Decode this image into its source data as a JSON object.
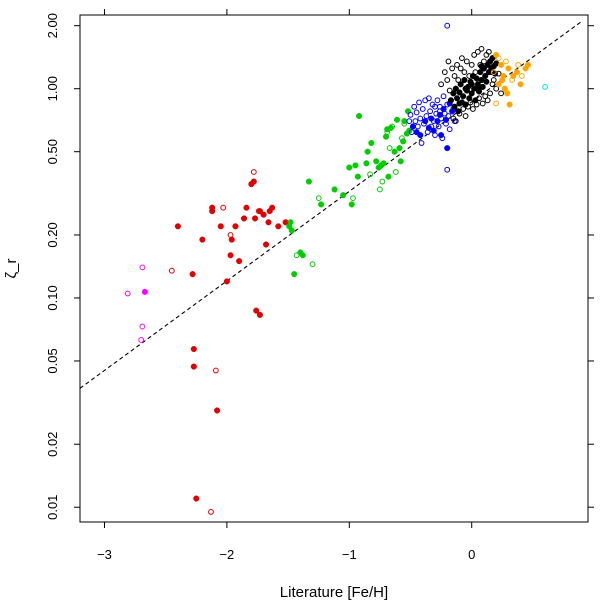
{
  "chart_data": {
    "type": "scatter",
    "title": "",
    "xlabel": "Literature [Fe/H]",
    "ylabel": "ζ_r",
    "xscale": "linear",
    "yscale": "log",
    "xlim": [
      -3.2,
      0.95
    ],
    "ylim": [
      0.0085,
      2.25
    ],
    "x_ticks": [
      -3,
      -2,
      -1,
      0
    ],
    "x_tick_labels": [
      "−3",
      "−2",
      "−1",
      "0"
    ],
    "y_ticks": [
      0.01,
      0.02,
      0.05,
      0.1,
      0.2,
      0.5,
      1.0,
      2.0
    ],
    "y_tick_labels": [
      "0.01",
      "0.02",
      "0.05",
      "0.10",
      "0.20",
      "0.50",
      "1.00",
      "2.00"
    ],
    "fit_line": {
      "style": "dashed",
      "color": "#000000",
      "points": [
        [
          -3.2,
          0.037
        ],
        [
          0.9,
          2.1
        ]
      ]
    },
    "colors": {
      "black": "#000000",
      "orange": "#FFA500",
      "blue": "#0000FF",
      "green": "#00CD00",
      "red": "#E00000",
      "magenta": "#FF00FF",
      "cyan": "#00E5E5"
    },
    "series": [
      {
        "name": "red",
        "color": "#E00000",
        "filled": [
          [
            -2.4,
            0.22
          ],
          [
            -2.28,
            0.13
          ],
          [
            -2.27,
            0.057
          ],
          [
            -2.27,
            0.047
          ],
          [
            -2.25,
            0.011
          ],
          [
            -2.2,
            0.19
          ],
          [
            -2.12,
            0.26
          ],
          [
            -2.12,
            0.27
          ],
          [
            -2.08,
            0.029
          ],
          [
            -2.05,
            0.22
          ],
          [
            -2,
            0.12
          ],
          [
            -1.97,
            0.16
          ],
          [
            -1.96,
            0.19
          ],
          [
            -1.93,
            0.22
          ],
          [
            -1.9,
            0.15
          ],
          [
            -1.86,
            0.24
          ],
          [
            -1.84,
            0.27
          ],
          [
            -1.8,
            0.35
          ],
          [
            -1.78,
            0.36
          ],
          [
            -1.77,
            0.24
          ],
          [
            -1.76,
            0.087
          ],
          [
            -1.73,
            0.083
          ],
          [
            -1.73,
            0.26
          ],
          [
            -1.7,
            0.25
          ],
          [
            -1.68,
            0.18
          ],
          [
            -1.66,
            0.23
          ],
          [
            -1.65,
            0.26
          ],
          [
            -1.63,
            0.27
          ],
          [
            -1.58,
            0.22
          ],
          [
            -1.52,
            0.23
          ]
        ],
        "open": [
          [
            -2.45,
            0.135
          ],
          [
            -2.13,
            0.0095
          ],
          [
            -2.09,
            0.045
          ],
          [
            -2.03,
            0.27
          ],
          [
            -1.97,
            0.2
          ],
          [
            -1.78,
            0.4
          ],
          [
            -1.74,
            0.26
          ]
        ]
      },
      {
        "name": "magenta",
        "color": "#FF00FF",
        "filled": [
          [
            -2.67,
            0.107
          ]
        ],
        "open": [
          [
            -2.81,
            0.105
          ],
          [
            -2.69,
            0.14
          ],
          [
            -2.69,
            0.073
          ],
          [
            -2.7,
            0.063
          ]
        ]
      },
      {
        "name": "green",
        "color": "#00CD00",
        "filled": [
          [
            -1.49,
            0.22
          ],
          [
            -1.48,
            0.23
          ],
          [
            -1.47,
            0.21
          ],
          [
            -1.45,
            0.13
          ],
          [
            -1.4,
            0.165
          ],
          [
            -1.38,
            0.16
          ],
          [
            -1.33,
            0.36
          ],
          [
            -1.23,
            0.28
          ],
          [
            -1.12,
            0.33
          ],
          [
            -1.05,
            0.31
          ],
          [
            -1,
            0.42
          ],
          [
            -0.98,
            0.28
          ],
          [
            -0.95,
            0.43
          ],
          [
            -0.93,
            0.38
          ],
          [
            -0.92,
            0.74
          ],
          [
            -0.86,
            0.44
          ],
          [
            -0.85,
            0.5
          ],
          [
            -0.82,
            0.55
          ],
          [
            -0.78,
            0.45
          ],
          [
            -0.76,
            0.42
          ],
          [
            -0.74,
            0.43
          ],
          [
            -0.72,
            0.44
          ],
          [
            -0.7,
            0.59
          ],
          [
            -0.69,
            0.64
          ],
          [
            -0.68,
            0.38
          ],
          [
            -0.66,
            0.65
          ],
          [
            -0.63,
            0.5
          ],
          [
            -0.61,
            0.71
          ],
          [
            -0.59,
            0.52
          ],
          [
            -0.58,
            0.45
          ],
          [
            -0.56,
            0.56
          ],
          [
            -0.55,
            0.7
          ],
          [
            -0.53,
            0.61
          ],
          [
            -0.52,
            0.78
          ],
          [
            -0.51,
            0.63
          ]
        ],
        "open": [
          [
            -1.43,
            0.16
          ],
          [
            -1.3,
            0.145
          ],
          [
            -1.25,
            0.3
          ],
          [
            -0.97,
            0.3
          ],
          [
            -0.83,
            0.39
          ],
          [
            -0.75,
            0.33
          ],
          [
            -0.73,
            0.36
          ],
          [
            -0.69,
            0.62
          ],
          [
            -0.67,
            0.52
          ],
          [
            -0.65,
            0.66
          ],
          [
            -0.62,
            0.4
          ],
          [
            -0.57,
            0.58
          ],
          [
            -0.55,
            0.68
          ]
        ]
      },
      {
        "name": "blue",
        "color": "#0000FF",
        "filled": [
          [
            -0.48,
            0.66
          ],
          [
            -0.45,
            0.62
          ],
          [
            -0.42,
            0.6
          ],
          [
            -0.38,
            0.7
          ],
          [
            -0.35,
            0.65
          ],
          [
            -0.33,
            0.72
          ],
          [
            -0.31,
            0.63
          ],
          [
            -0.28,
            0.7
          ],
          [
            -0.26,
            0.75
          ],
          [
            -0.25,
            0.6
          ],
          [
            -0.23,
            0.8
          ],
          [
            -0.21,
            0.71
          ],
          [
            -0.2,
            0.52
          ],
          [
            -0.18,
            0.85
          ],
          [
            -0.16,
            0.78
          ]
        ],
        "open": [
          [
            -0.51,
            0.7
          ],
          [
            -0.5,
            0.75
          ],
          [
            -0.49,
            0.62
          ],
          [
            -0.47,
            0.82
          ],
          [
            -0.46,
            0.7
          ],
          [
            -0.45,
            0.77
          ],
          [
            -0.44,
            0.66
          ],
          [
            -0.43,
            0.86
          ],
          [
            -0.42,
            0.72
          ],
          [
            -0.41,
            0.55
          ],
          [
            -0.4,
            0.8
          ],
          [
            -0.39,
            0.68
          ],
          [
            -0.38,
            0.88
          ],
          [
            -0.37,
            0.74
          ],
          [
            -0.36,
            0.62
          ],
          [
            -0.35,
            0.9
          ],
          [
            -0.34,
            0.78
          ],
          [
            -0.33,
            0.66
          ],
          [
            -0.32,
            0.84
          ],
          [
            -0.31,
            0.7
          ],
          [
            -0.3,
            0.6
          ],
          [
            -0.29,
            0.76
          ],
          [
            -0.28,
            0.88
          ],
          [
            -0.27,
            0.66
          ],
          [
            -0.26,
            0.82
          ],
          [
            -0.25,
            0.72
          ],
          [
            -0.24,
            0.58
          ],
          [
            -0.23,
            0.92
          ],
          [
            -0.22,
            0.76
          ],
          [
            -0.21,
            0.68
          ],
          [
            -0.2,
            0.84
          ],
          [
            -0.19,
            0.74
          ],
          [
            -0.18,
            0.64
          ],
          [
            -0.17,
            0.88
          ],
          [
            -0.15,
            0.8
          ],
          [
            -0.14,
            0.7
          ],
          [
            -0.2,
            0.41
          ],
          [
            -0.2,
            2.0
          ],
          [
            -0.26,
            0.78
          ],
          [
            -0.3,
            0.82
          ]
        ]
      },
      {
        "name": "black",
        "color": "#000000",
        "filled": [
          [
            -0.17,
            0.88
          ],
          [
            -0.15,
            0.95
          ],
          [
            -0.14,
            0.82
          ],
          [
            -0.13,
            1.0
          ],
          [
            -0.12,
            0.9
          ],
          [
            -0.11,
            0.78
          ],
          [
            -0.1,
            0.96
          ],
          [
            -0.09,
            1.05
          ],
          [
            -0.08,
            0.86
          ],
          [
            -0.07,
            0.92
          ],
          [
            -0.06,
            1.1
          ],
          [
            -0.05,
            0.84
          ],
          [
            -0.04,
            0.98
          ],
          [
            -0.03,
            1.02
          ],
          [
            -0.02,
            0.9
          ],
          [
            -0.01,
            1.08
          ],
          [
            0,
            0.95
          ],
          [
            0.01,
            1.15
          ],
          [
            0.02,
            1.0
          ],
          [
            0.03,
            0.88
          ],
          [
            0.04,
            1.12
          ],
          [
            0.05,
            1.05
          ],
          [
            0.06,
            0.97
          ],
          [
            0.07,
            1.2
          ],
          [
            0.08,
            1.1
          ],
          [
            0.09,
            1.02
          ],
          [
            0.1,
            1.25
          ],
          [
            0.11,
            1.15
          ],
          [
            0.12,
            1.08
          ],
          [
            0.13,
            1.3
          ],
          [
            0.14,
            1.2
          ],
          [
            0.15,
            1.35
          ],
          [
            0.16,
            1.25
          ],
          [
            0.17,
            1.4
          ],
          [
            0.18,
            1.28
          ],
          [
            0.19,
            1.18
          ],
          [
            0.2,
            1.32
          ],
          [
            -0.05,
            1.0
          ],
          [
            0.0,
            1.05
          ],
          [
            0.05,
            1.0
          ],
          [
            -0.1,
            0.85
          ],
          [
            0.08,
            1.28
          ]
        ],
        "open": [
          [
            -0.22,
            1.2
          ],
          [
            -0.2,
            1.1
          ],
          [
            -0.19,
            1.35
          ],
          [
            -0.18,
            0.98
          ],
          [
            -0.16,
            1.25
          ],
          [
            -0.15,
            0.72
          ],
          [
            -0.14,
            1.15
          ],
          [
            -0.13,
            0.7
          ],
          [
            -0.12,
            1.3
          ],
          [
            -0.11,
            1.1
          ],
          [
            -0.1,
            0.76
          ],
          [
            -0.09,
            1.25
          ],
          [
            -0.08,
            1.4
          ],
          [
            -0.07,
            0.8
          ],
          [
            -0.06,
            1.2
          ],
          [
            -0.05,
            0.74
          ],
          [
            -0.04,
            1.35
          ],
          [
            -0.03,
            0.82
          ],
          [
            -0.02,
            1.15
          ],
          [
            -0.01,
            0.86
          ],
          [
            0,
            1.3
          ],
          [
            0.01,
            0.8
          ],
          [
            0.02,
            1.45
          ],
          [
            0.03,
            1.2
          ],
          [
            0.04,
            0.84
          ],
          [
            0.05,
            1.5
          ],
          [
            0.06,
            0.9
          ],
          [
            0.07,
            1.3
          ],
          [
            0.08,
            1.55
          ],
          [
            0.09,
            0.85
          ],
          [
            0.1,
            1.35
          ],
          [
            0.11,
            0.92
          ],
          [
            0.12,
            1.45
          ],
          [
            0.13,
            0.88
          ],
          [
            0.14,
            1.5
          ],
          [
            0.15,
            0.95
          ],
          [
            0.16,
            1.2
          ],
          [
            0.17,
            1.05
          ],
          [
            0.18,
            1.1
          ],
          [
            0.2,
            1.0
          ],
          [
            -0.25,
            1.05
          ],
          [
            0.22,
            1.18
          ],
          [
            0.24,
            0.95
          ]
        ]
      },
      {
        "name": "orange",
        "color": "#FFA500",
        "filled": [
          [
            0.22,
            1.05
          ],
          [
            0.24,
            1.3
          ],
          [
            0.26,
            1.15
          ],
          [
            0.27,
            1.0
          ],
          [
            0.29,
            0.95
          ],
          [
            0.3,
            1.25
          ],
          [
            0.31,
            0.84
          ],
          [
            0.34,
            1.15
          ],
          [
            0.37,
            1.2
          ],
          [
            0.4,
            1.05
          ],
          [
            0.44,
            1.25
          ],
          [
            0.46,
            1.3
          ],
          [
            0.2,
            1.45
          ],
          [
            0.25,
            1.1
          ]
        ],
        "open": [
          [
            0.18,
            1.2
          ],
          [
            0.2,
            0.85
          ],
          [
            0.22,
            1.4
          ],
          [
            0.28,
            1.35
          ],
          [
            0.33,
            1.1
          ],
          [
            0.38,
            1.3
          ],
          [
            0.41,
            1.15
          ]
        ]
      },
      {
        "name": "cyan",
        "color": "#00E5E5",
        "filled": [],
        "open": [
          [
            0.6,
            1.02
          ]
        ]
      }
    ]
  }
}
